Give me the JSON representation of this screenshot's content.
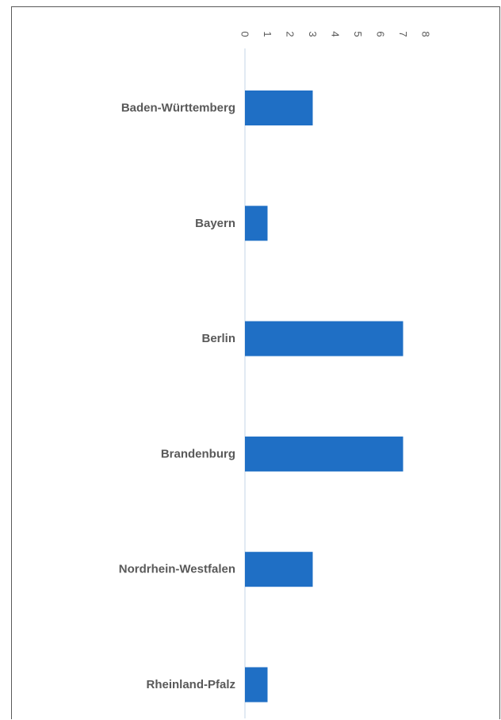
{
  "chart_data": {
    "type": "bar",
    "orientation": "horizontal",
    "categories": [
      "Baden-Württemberg",
      "Bayern",
      "Berlin",
      "Brandenburg",
      "Nordrhein-Westfalen",
      "Rheinland-Pfalz"
    ],
    "values": [
      3,
      1,
      7,
      7,
      3,
      1
    ],
    "xlim": [
      0,
      8
    ],
    "xticks": [
      "0",
      "1",
      "2",
      "3",
      "4",
      "5",
      "6",
      "7",
      "8"
    ],
    "x_axis_position": "top",
    "tick_label_rotation": "vertical",
    "grid": false,
    "legend": "none",
    "bar_color": "#1f6fc5",
    "label_color": "#595959",
    "axis_color": "#d9e4ef"
  }
}
